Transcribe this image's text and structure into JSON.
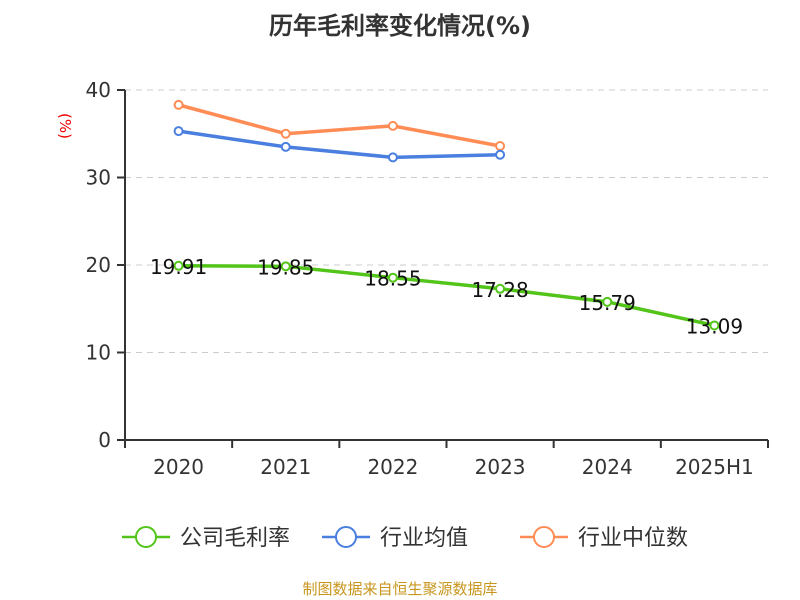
{
  "chart_data": {
    "type": "line",
    "title": "历年毛利率变化情况(%)",
    "ylabel": "(%)",
    "categories": [
      "2020",
      "2021",
      "2022",
      "2023",
      "2024",
      "2025H1"
    ],
    "ylim": [
      0,
      40
    ],
    "yticks": [
      0,
      10,
      20,
      30,
      40
    ],
    "grid": true,
    "legend_position": "bottom",
    "series": [
      {
        "name": "公司毛利率",
        "color": "#52c41a",
        "values": [
          19.91,
          19.85,
          18.55,
          17.28,
          15.79,
          13.09
        ],
        "labels": [
          "19.91",
          "19.85",
          "18.55",
          "17.28",
          "15.79",
          "13.09"
        ]
      },
      {
        "name": "行业均值",
        "color": "#4a7fe0",
        "values": [
          35.3,
          33.5,
          32.3,
          32.6,
          null,
          null
        ]
      },
      {
        "name": "行业中位数",
        "color": "#ff8c55",
        "values": [
          38.3,
          35.0,
          35.9,
          33.6,
          null,
          null
        ]
      }
    ]
  },
  "source": "制图数据来自恒生聚源数据库"
}
